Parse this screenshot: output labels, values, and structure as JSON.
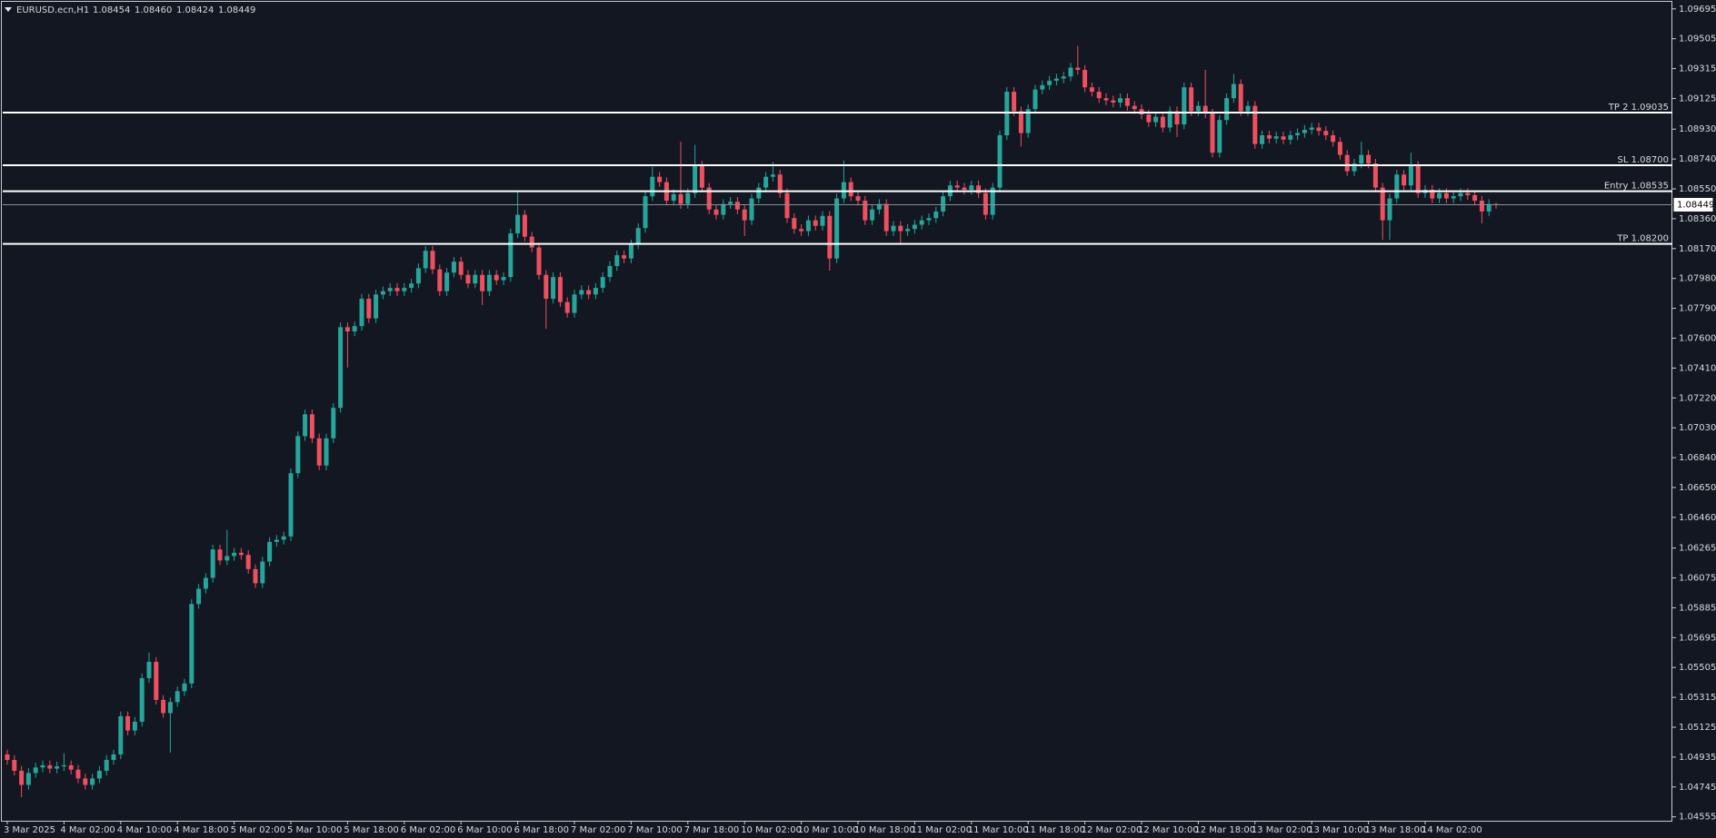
{
  "chart_data": {
    "type": "candlestick",
    "title": "EURUSD.ecn,H1",
    "header_labels": [
      "1.08454",
      "1.08460",
      "1.08424",
      "1.08449"
    ],
    "up_color": "#26a69a",
    "down_color": "#ef4f5e",
    "level_color": "#ffffff",
    "bid_color": "#8a8d96",
    "ylim": [
      1.0453,
      1.0974
    ],
    "yticks": [
      1.09695,
      1.09505,
      1.09315,
      1.09125,
      {
        "value": 1.0893,
        "label": "1.08930"
      },
      {
        "value": 1.0874,
        "label": "1.08740"
      },
      {
        "value": 1.0855,
        "label": "1.08550"
      },
      {
        "value": 1.0836,
        "label": "1.08360"
      },
      {
        "value": 1.0817,
        "label": "1.08170"
      },
      {
        "value": 1.0798,
        "label": "1.07980"
      },
      {
        "value": 1.0779,
        "label": "1.07790"
      },
      {
        "value": 1.076,
        "label": "1.07600"
      },
      {
        "value": 1.0741,
        "label": "1.07410"
      },
      {
        "value": 1.0722,
        "label": "1.07220"
      },
      {
        "value": 1.0703,
        "label": "1.07030"
      },
      {
        "value": 1.0684,
        "label": "1.06840"
      },
      {
        "value": 1.0665,
        "label": "1.06650"
      },
      {
        "value": 1.0646,
        "label": "1.06460"
      },
      1.06265,
      1.06075,
      1.05885,
      1.05695,
      1.05505,
      1.05315,
      1.05125,
      1.04935,
      1.04745,
      1.04555
    ],
    "levels": [
      {
        "label": "TP 2 1.09035",
        "value": 1.09035
      },
      {
        "label": "SL 1.08700",
        "value": 1.087
      },
      {
        "label": "Entry 1.08535",
        "value": 1.08535
      },
      {
        "label": "TP 1.08200",
        "value": 1.082
      }
    ],
    "categories": [
      "3 Mar 2025",
      null,
      null,
      null,
      null,
      null,
      null,
      null,
      "4 Mar 02:00",
      null,
      null,
      null,
      null,
      null,
      null,
      null,
      "4 Mar 10:00",
      null,
      null,
      null,
      null,
      null,
      null,
      null,
      "4 Mar 18:00",
      null,
      null,
      null,
      null,
      null,
      null,
      null,
      "5 Mar 02:00",
      null,
      null,
      null,
      null,
      null,
      null,
      null,
      "5 Mar 10:00",
      null,
      null,
      null,
      null,
      null,
      null,
      null,
      "5 Mar 18:00",
      null,
      null,
      null,
      null,
      null,
      null,
      null,
      "6 Mar 02:00",
      null,
      null,
      null,
      null,
      null,
      null,
      null,
      "6 Mar 10:00",
      null,
      null,
      null,
      null,
      null,
      null,
      null,
      "6 Mar 18:00",
      null,
      null,
      null,
      null,
      null,
      null,
      null,
      "7 Mar 02:00",
      null,
      null,
      null,
      null,
      null,
      null,
      null,
      "7 Mar 10:00",
      null,
      null,
      null,
      null,
      null,
      null,
      null,
      "7 Mar 18:00",
      null,
      null,
      null,
      null,
      null,
      null,
      null,
      "10 Mar 02:00",
      null,
      null,
      null,
      null,
      null,
      null,
      null,
      "10 Mar 10:00",
      null,
      null,
      null,
      null,
      null,
      null,
      null,
      "10 Mar 18:00",
      null,
      null,
      null,
      null,
      null,
      null,
      null,
      "11 Mar 02:00",
      null,
      null,
      null,
      null,
      null,
      null,
      null,
      "11 Mar 10:00",
      null,
      null,
      null,
      null,
      null,
      null,
      null,
      "11 Mar 18:00",
      null,
      null,
      null,
      null,
      null,
      null,
      null,
      "12 Mar 02:00",
      null,
      null,
      null,
      null,
      null,
      null,
      null,
      "12 Mar 10:00",
      null,
      null,
      null,
      null,
      null,
      null,
      null,
      "12 Mar 18:00",
      null,
      null,
      null,
      null,
      null,
      null,
      null,
      "13 Mar 02:00",
      null,
      null,
      null,
      null,
      null,
      null,
      null,
      "13 Mar 10:00",
      null,
      null,
      null,
      null,
      null,
      null,
      null,
      "13 Mar 18:00",
      null,
      null,
      null,
      null,
      null,
      null,
      null,
      "14 Mar 02:00",
      null,
      null,
      null,
      null,
      null,
      null,
      null,
      null,
      null,
      null
    ],
    "open": [
      1.04952,
      1.04917,
      1.04848,
      1.04758,
      1.04834,
      1.04869,
      1.04883,
      1.04862,
      1.04876,
      1.04883,
      1.04855,
      1.04799,
      1.04758,
      1.04799,
      1.04848,
      1.04917,
      1.04952,
      1.05195,
      1.05104,
      1.0516,
      1.05437,
      1.05541,
      1.05299,
      1.05215,
      1.05285,
      1.05354,
      1.05403,
      1.05909,
      1.06006,
      1.06075,
      1.06256,
      1.06186,
      1.06214,
      1.06235,
      1.06221,
      1.06131,
      1.06041,
      1.06179,
      1.06304,
      1.06318,
      1.06339,
      1.06741,
      1.06977,
      1.07116,
      1.06963,
      1.0679,
      1.06963,
      1.07157,
      1.0767,
      1.07643,
      1.07677,
      1.07851,
      1.07726,
      1.07878,
      1.07899,
      1.0792,
      1.07899,
      1.0792,
      1.07948,
      1.08045,
      1.08156,
      1.08038,
      1.07899,
      1.08017,
      1.08087,
      1.08003,
      1.07948,
      1.08003,
      1.07899,
      1.08003,
      1.07969,
      1.07989,
      1.08267,
      1.08385,
      1.08246,
      1.08177,
      1.08003,
      1.07851,
      1.07989,
      1.0783,
      1.07761,
      1.07878,
      1.07906,
      1.07878,
      1.0792,
      1.07989,
      1.08059,
      1.08128,
      1.08107,
      1.08197,
      1.08301,
      1.08503,
      1.08627,
      1.08593,
      1.08475,
      1.08516,
      1.08454,
      1.08523,
      1.08697,
      1.08558,
      1.08419,
      1.08385,
      1.08454,
      1.08468,
      1.08419,
      1.0835,
      1.08489,
      1.08558,
      1.08627,
      1.08641,
      1.08523,
      1.08364,
      1.08295,
      1.08281,
      1.0835,
      1.08315,
      1.08378,
      1.08107,
      1.08489,
      1.08593,
      1.08503,
      1.08475,
      1.0835,
      1.08419,
      1.08454,
      1.08281,
      1.08315,
      1.08281,
      1.08295,
      1.08322,
      1.0835,
      1.08364,
      1.08406,
      1.08503,
      1.08572,
      1.08558,
      1.08544,
      1.08572,
      1.08523,
      1.08385,
      1.08558,
      1.08891,
      1.09168,
      1.09044,
      1.08905,
      1.09057,
      1.09182,
      1.0921,
      1.09238,
      1.09252,
      1.09265,
      1.09321,
      1.09307,
      1.09196,
      1.09168,
      1.09127,
      1.09113,
      1.09099,
      1.09127,
      1.09078,
      1.09057,
      1.09023,
      1.08974,
      1.09009,
      1.0894,
      1.09044,
      1.0896,
      1.09196,
      1.09044,
      1.09078,
      1.0903,
      1.0878,
      1.08988,
      1.09127,
      1.09217,
      1.09044,
      1.09078,
      1.08835,
      1.08891,
      1.0887,
      1.08884,
      1.08863,
      1.08891,
      1.08905,
      1.08926,
      1.0894,
      1.08919,
      1.08891,
      1.08849,
      1.08766,
      1.08662,
      1.08711,
      1.08766,
      1.08711,
      1.08558,
      1.0835,
      1.08489,
      1.08641,
      1.08572,
      1.08697,
      1.08523,
      1.08544,
      1.08489,
      1.08523,
      1.08489,
      1.08503,
      1.08523,
      1.0851,
      1.08475,
      1.08406,
      1.08454
    ],
    "high": [
      1.04982,
      1.04947,
      1.04878,
      1.04864,
      1.04899,
      1.04913,
      1.04913,
      1.04906,
      1.0496,
      1.04913,
      1.04885,
      1.04829,
      1.04829,
      1.04878,
      1.04947,
      1.04982,
      1.05225,
      1.05225,
      1.0519,
      1.05467,
      1.056,
      1.05571,
      1.05329,
      1.05315,
      1.05384,
      1.05433,
      1.05939,
      1.06036,
      1.06105,
      1.06286,
      1.06286,
      1.0638,
      1.06265,
      1.06265,
      1.06251,
      1.06161,
      1.06209,
      1.06334,
      1.06348,
      1.06369,
      1.06771,
      1.07007,
      1.07146,
      1.07146,
      1.06993,
      1.06993,
      1.07187,
      1.077,
      1.077,
      1.07707,
      1.07881,
      1.07881,
      1.07908,
      1.07929,
      1.0795,
      1.0795,
      1.0795,
      1.07978,
      1.08075,
      1.08186,
      1.08186,
      1.08068,
      1.08047,
      1.08117,
      1.08117,
      1.08033,
      1.08033,
      1.08033,
      1.08033,
      1.08033,
      1.08019,
      1.08297,
      1.0854,
      1.08415,
      1.08276,
      1.08207,
      1.08033,
      1.08019,
      1.08019,
      1.0786,
      1.07908,
      1.07936,
      1.07936,
      1.0795,
      1.08019,
      1.08089,
      1.08158,
      1.08158,
      1.08227,
      1.08331,
      1.08533,
      1.0869,
      1.08657,
      1.08623,
      1.08546,
      1.0885,
      1.08553,
      1.0883,
      1.08727,
      1.08588,
      1.08449,
      1.08484,
      1.08498,
      1.08498,
      1.08449,
      1.08519,
      1.08588,
      1.08657,
      1.0872,
      1.08671,
      1.08553,
      1.08394,
      1.08325,
      1.0838,
      1.0838,
      1.08408,
      1.08408,
      1.08519,
      1.08731,
      1.08623,
      1.08533,
      1.08505,
      1.08449,
      1.08484,
      1.08484,
      1.08345,
      1.08345,
      1.08325,
      1.08352,
      1.0838,
      1.08394,
      1.08436,
      1.08533,
      1.08602,
      1.08602,
      1.08588,
      1.08602,
      1.08602,
      1.08553,
      1.08588,
      1.08921,
      1.09198,
      1.09198,
      1.09074,
      1.09087,
      1.09212,
      1.0924,
      1.09268,
      1.09282,
      1.09295,
      1.09351,
      1.0946,
      1.09337,
      1.09226,
      1.09198,
      1.09157,
      1.09143,
      1.09157,
      1.09157,
      1.09108,
      1.09087,
      1.09053,
      1.09039,
      1.09039,
      1.09074,
      1.09074,
      1.09226,
      1.09226,
      1.09108,
      1.09307,
      1.0906,
      1.09018,
      1.09157,
      1.0928,
      1.09247,
      1.09108,
      1.09108,
      1.08921,
      1.08921,
      1.08914,
      1.08914,
      1.08921,
      1.08935,
      1.08956,
      1.0897,
      1.0897,
      1.08949,
      1.08921,
      1.08879,
      1.08796,
      1.08741,
      1.0885,
      1.08796,
      1.08741,
      1.08588,
      1.08519,
      1.08671,
      1.08671,
      1.0878,
      1.08727,
      1.08574,
      1.08574,
      1.08553,
      1.08553,
      1.08533,
      1.08553,
      1.08553,
      1.0854,
      1.08505,
      1.08484,
      1.0846
    ],
    "low": [
      1.04887,
      1.04818,
      1.0468,
      1.04728,
      1.04804,
      1.04839,
      1.04832,
      1.04832,
      1.04846,
      1.04825,
      1.04769,
      1.04728,
      1.04728,
      1.04769,
      1.04818,
      1.04887,
      1.04922,
      1.05074,
      1.05074,
      1.0513,
      1.05407,
      1.05269,
      1.05185,
      1.04963,
      1.05255,
      1.05324,
      1.05373,
      1.05879,
      1.05976,
      1.06045,
      1.06156,
      1.06156,
      1.06184,
      1.06191,
      1.06101,
      1.06011,
      1.06011,
      1.06149,
      1.06274,
      1.06288,
      1.06309,
      1.06711,
      1.06947,
      1.06933,
      1.0676,
      1.0676,
      1.06933,
      1.07127,
      1.07414,
      1.07613,
      1.07647,
      1.07696,
      1.07696,
      1.07848,
      1.07869,
      1.07869,
      1.07869,
      1.0789,
      1.07918,
      1.08015,
      1.08008,
      1.07869,
      1.07869,
      1.07987,
      1.07973,
      1.07918,
      1.07918,
      1.0781,
      1.07869,
      1.07939,
      1.07939,
      1.07959,
      1.08237,
      1.08216,
      1.08147,
      1.07973,
      1.0766,
      1.07821,
      1.078,
      1.07731,
      1.07731,
      1.07848,
      1.07848,
      1.07848,
      1.0789,
      1.07959,
      1.08029,
      1.08077,
      1.08077,
      1.08167,
      1.08271,
      1.08473,
      1.08563,
      1.08445,
      1.08445,
      1.08424,
      1.08424,
      1.08493,
      1.08528,
      1.08389,
      1.08355,
      1.08355,
      1.08424,
      1.08389,
      1.0825,
      1.0832,
      1.08459,
      1.08528,
      1.08597,
      1.08493,
      1.08334,
      1.08265,
      1.08251,
      1.08251,
      1.08285,
      1.08285,
      1.0803,
      1.08077,
      1.08459,
      1.08473,
      1.08445,
      1.0832,
      1.0832,
      1.08389,
      1.08251,
      1.08251,
      1.082,
      1.08251,
      1.08265,
      1.08292,
      1.0832,
      1.08334,
      1.08376,
      1.08473,
      1.08528,
      1.08514,
      1.08514,
      1.08493,
      1.08355,
      1.08355,
      1.08528,
      1.08861,
      1.09014,
      1.0882,
      1.08875,
      1.09027,
      1.09152,
      1.0918,
      1.09208,
      1.09222,
      1.09235,
      1.09277,
      1.09166,
      1.09138,
      1.09097,
      1.09083,
      1.09069,
      1.09069,
      1.09048,
      1.09027,
      1.08993,
      1.08944,
      1.08944,
      1.0891,
      1.0891,
      1.0888,
      1.0893,
      1.09014,
      1.09014,
      1.09,
      1.0875,
      1.0875,
      1.08958,
      1.09097,
      1.09014,
      1.09014,
      1.08805,
      1.08805,
      1.0884,
      1.0884,
      1.08833,
      1.08833,
      1.08861,
      1.08875,
      1.08896,
      1.08889,
      1.08861,
      1.08819,
      1.08736,
      1.08632,
      1.08632,
      1.08681,
      1.08681,
      1.08528,
      1.08225,
      1.08225,
      1.08459,
      1.08542,
      1.08542,
      1.08493,
      1.08493,
      1.08459,
      1.08459,
      1.08459,
      1.08459,
      1.08473,
      1.0848,
      1.08445,
      1.0833,
      1.08376,
      1.08424
    ],
    "close": [
      1.04917,
      1.04848,
      1.04758,
      1.04834,
      1.04869,
      1.04883,
      1.04862,
      1.04876,
      1.04883,
      1.04855,
      1.04799,
      1.04758,
      1.04799,
      1.04848,
      1.04917,
      1.04952,
      1.05195,
      1.05104,
      1.0516,
      1.05437,
      1.05541,
      1.05299,
      1.05215,
      1.05285,
      1.05354,
      1.05403,
      1.05909,
      1.06006,
      1.06075,
      1.06256,
      1.06186,
      1.06214,
      1.06235,
      1.06221,
      1.06131,
      1.06041,
      1.06179,
      1.06304,
      1.06318,
      1.06339,
      1.06741,
      1.06977,
      1.07116,
      1.06963,
      1.0679,
      1.06963,
      1.07157,
      1.0767,
      1.07643,
      1.07677,
      1.07851,
      1.07726,
      1.07878,
      1.07899,
      1.0792,
      1.07899,
      1.0792,
      1.07948,
      1.08045,
      1.08156,
      1.08038,
      1.07899,
      1.08017,
      1.08087,
      1.08003,
      1.07948,
      1.08003,
      1.07899,
      1.08003,
      1.07969,
      1.07989,
      1.08267,
      1.08385,
      1.08246,
      1.08177,
      1.08003,
      1.07851,
      1.07989,
      1.0783,
      1.07761,
      1.07878,
      1.07906,
      1.07878,
      1.0792,
      1.07989,
      1.08059,
      1.08128,
      1.08107,
      1.08197,
      1.08301,
      1.08503,
      1.08627,
      1.08593,
      1.08475,
      1.08516,
      1.08454,
      1.08523,
      1.08697,
      1.08558,
      1.08419,
      1.08385,
      1.08454,
      1.08468,
      1.08419,
      1.0835,
      1.08489,
      1.08558,
      1.08627,
      1.08641,
      1.08523,
      1.08364,
      1.08295,
      1.08281,
      1.0835,
      1.08315,
      1.08378,
      1.08107,
      1.08489,
      1.08593,
      1.08503,
      1.08475,
      1.0835,
      1.08419,
      1.08454,
      1.08281,
      1.08315,
      1.08281,
      1.08295,
      1.08322,
      1.0835,
      1.08364,
      1.08406,
      1.08503,
      1.08572,
      1.08558,
      1.08544,
      1.08572,
      1.08523,
      1.08385,
      1.08558,
      1.08891,
      1.09168,
      1.09044,
      1.08905,
      1.09057,
      1.09182,
      1.0921,
      1.09238,
      1.09252,
      1.09265,
      1.09321,
      1.09307,
      1.09196,
      1.09168,
      1.09127,
      1.09113,
      1.09099,
      1.09127,
      1.09078,
      1.09057,
      1.09023,
      1.08974,
      1.09009,
      1.0894,
      1.09044,
      1.0896,
      1.09196,
      1.09044,
      1.09078,
      1.0903,
      1.0878,
      1.08988,
      1.09127,
      1.09217,
      1.09044,
      1.09078,
      1.08835,
      1.08891,
      1.0887,
      1.08884,
      1.08863,
      1.08891,
      1.08905,
      1.08926,
      1.0894,
      1.08919,
      1.08891,
      1.08849,
      1.08766,
      1.08662,
      1.08711,
      1.08766,
      1.08711,
      1.08558,
      1.0835,
      1.08489,
      1.08641,
      1.08572,
      1.08697,
      1.08523,
      1.08544,
      1.08489,
      1.08523,
      1.08489,
      1.08503,
      1.08523,
      1.0851,
      1.08475,
      1.08406,
      1.08454,
      1.08449
    ]
  }
}
